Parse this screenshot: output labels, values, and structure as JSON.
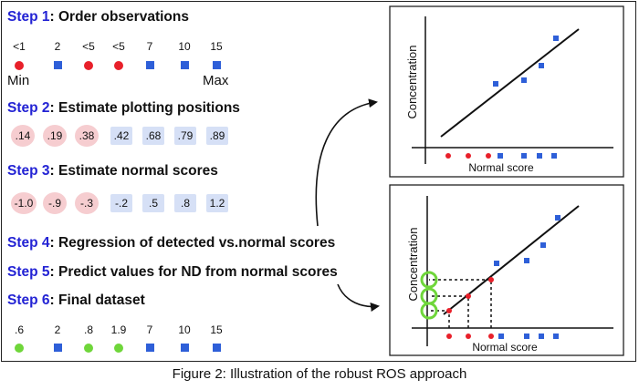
{
  "steps": [
    {
      "num": "Step 1",
      "text": ": Order observations"
    },
    {
      "num": "Step 2",
      "text": ": Estimate plotting positions"
    },
    {
      "num": "Step 3",
      "text": ": Estimate normal scores"
    },
    {
      "num": "Step 4",
      "text": ": Regression of detected vs.normal scores"
    },
    {
      "num": "Step 5",
      "text": ": Predict values for ND from normal scores"
    },
    {
      "num": "Step 6",
      "text": ": Final dataset"
    }
  ],
  "observations": [
    "<1",
    "2",
    "<5",
    "<5",
    "7",
    "10",
    "15"
  ],
  "min_label": "Min",
  "max_label": "Max",
  "plotting_positions": [
    ".14",
    ".19",
    ".38",
    ".42",
    ".68",
    ".79",
    ".89"
  ],
  "normal_scores": [
    "-1.0",
    "-.9",
    "-.3",
    "-.2",
    ".5",
    ".8",
    "1.2"
  ],
  "final_dataset": [
    ".6",
    "2",
    ".8",
    "1.9",
    "7",
    "10",
    "15"
  ],
  "plot_top": {
    "ylabel": "Concentration",
    "xlabel": "Normal score"
  },
  "plot_bottom": {
    "ylabel": "Concentration",
    "xlabel": "Normal score"
  },
  "caption": "Figure 2: Illustration of the robust ROS approach",
  "colors": {
    "step_num": "#2323d4",
    "nondetect": "#e8202a",
    "detect": "#2e5fd8",
    "predicted": "#6fd63a",
    "nd_fill": "#f6cdd0",
    "det_fill": "#d6e0f6"
  }
}
